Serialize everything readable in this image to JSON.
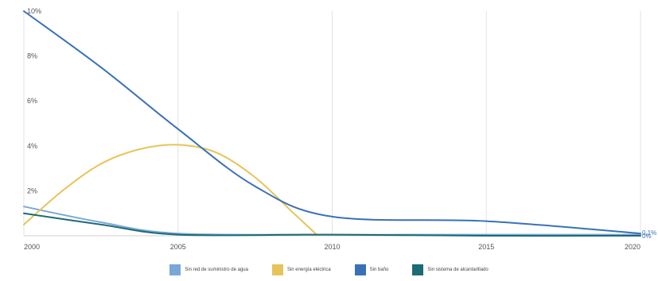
{
  "chart_data": {
    "type": "line",
    "title": "",
    "xlabel": "",
    "ylabel": "",
    "x_ticks": [
      "2000",
      "2005",
      "2010",
      "2015",
      "2020"
    ],
    "y_ticks": [
      "2%",
      "4%",
      "6%",
      "8%",
      "10%"
    ],
    "xlim": [
      2000,
      2020
    ],
    "ylim": [
      0,
      10
    ],
    "grid": true,
    "legend_position": "bottom",
    "end_labels": [
      "0,1%",
      "0%"
    ],
    "series": [
      {
        "name": "Sin red de suministro de agua",
        "color": "#7aa7d9",
        "x": [
          2000,
          2002.5,
          2005,
          2010,
          2015,
          2020
        ],
        "y": [
          1.3,
          0.6,
          0.1,
          0.05,
          0.05,
          0.05
        ]
      },
      {
        "name": "Sin energía eléctrica",
        "color": "#e8c35a",
        "x": [
          2000,
          2001.25,
          2002.5,
          2003.75,
          2005,
          2006.25,
          2007.5,
          2008.75,
          2009.5
        ],
        "y": [
          0.5,
          2.0,
          3.2,
          3.85,
          4.05,
          3.7,
          2.6,
          1.0,
          0.05
        ]
      },
      {
        "name": "Sin baño",
        "color": "#3a70b8",
        "x": [
          2000,
          2002.5,
          2005,
          2007.5,
          2010,
          2015,
          2020
        ],
        "y": [
          10,
          7.5,
          4.75,
          2.2,
          0.85,
          0.65,
          0.1
        ]
      },
      {
        "name": "Sin sistema de alcantarillado",
        "color": "#1c6b76",
        "x": [
          2000,
          2002.5,
          2005,
          2010,
          2015,
          2020
        ],
        "y": [
          1.0,
          0.5,
          0.05,
          0.05,
          0.0,
          0.0
        ]
      }
    ]
  }
}
